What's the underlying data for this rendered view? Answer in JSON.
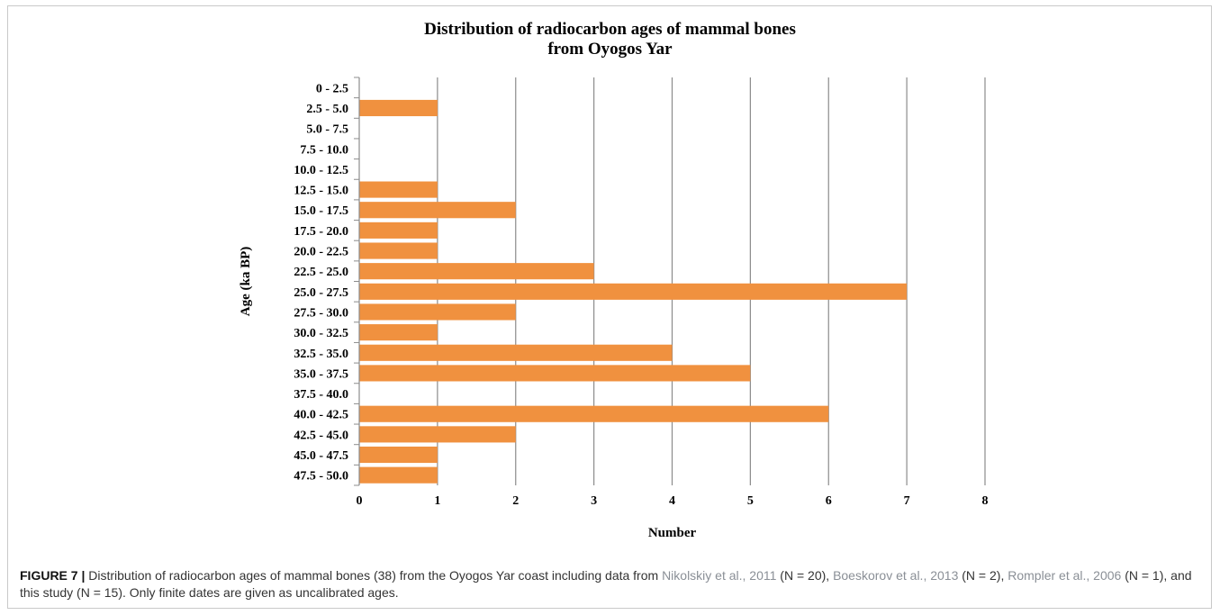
{
  "chart_data": {
    "type": "bar",
    "orientation": "horizontal",
    "title_lines": [
      "Distribution of radiocarbon ages of mammal bones",
      "from Oyogos Yar"
    ],
    "xlabel": "Number",
    "ylabel": "Age (ka BP)",
    "xlim": [
      0,
      8
    ],
    "xticks": [
      0,
      1,
      2,
      3,
      4,
      5,
      6,
      7,
      8
    ],
    "grid": "vertical",
    "bar_color": "#f0913f",
    "categories": [
      "0 - 2.5",
      "2.5 - 5.0",
      "5.0 - 7.5",
      "7.5 - 10.0",
      "10.0 - 12.5",
      "12.5 - 15.0",
      "15.0 - 17.5",
      "17.5 - 20.0",
      "20.0 - 22.5",
      "22.5 - 25.0",
      "25.0 - 27.5",
      "27.5 - 30.0",
      "30.0 - 32.5",
      "32.5 - 35.0",
      "35.0 - 37.5",
      "37.5 - 40.0",
      "40.0 - 42.5",
      "42.5 - 45.0",
      "45.0 - 47.5",
      "47.5 - 50.0"
    ],
    "values": [
      0,
      1,
      0,
      0,
      0,
      1,
      2,
      1,
      1,
      3,
      7,
      2,
      1,
      4,
      5,
      0,
      6,
      2,
      1,
      1
    ]
  },
  "caption": {
    "figure_label": "FIGURE 7 |",
    "t1": " Distribution of radiocarbon ages of mammal bones (38) from the Oyogos Yar coast including data from ",
    "ref1": "Nikolskiy et al., 2011",
    "t2": " (N = 20), ",
    "ref2": "Boeskorov et al., 2013",
    "t3": " (N = 2), ",
    "ref3": "Rompler et al., 2006",
    "t4": " (N = 1), and this study (N = 15). Only finite dates are given as uncalibrated ages."
  }
}
